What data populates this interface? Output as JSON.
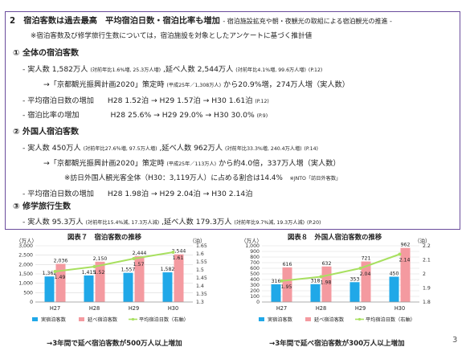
{
  "section": {
    "title": "2　宿泊客数は過去最高　平均宿泊日数・宿泊比率も増加",
    "title_note": "- 宿泊施設拡充や朝・夜観光の取組による宿泊観光の推進 -",
    "source_note": "※宿泊客数及び修学旅行生数については，宿泊施設を対象としたアンケートに基づく推計値"
  },
  "overall": {
    "heading": "① 全体の宿泊客数",
    "line1_main": "- 実人数 1,582万人",
    "line1_note": "(対前年比1.6%増, 25.3万人増)",
    "line1_mid": ",延べ人数 2,544万人",
    "line1_note2": "(対前年比4.1%増, 99.6万人増)",
    "line1_page": "(P.12)",
    "line2_prefix": "→「京都観光振興計画2020」策定時",
    "line2_note": "(平成25年／1,308万人)",
    "line2_from": "から",
    "line2_hl": "20.9%増，274万人増",
    "line2_suffix": "（実人数）",
    "line3_label": "- 平均宿泊日数の増加",
    "line3_vals": "H28 1.52泊 → H29 1.57泊 → H30 1.61泊",
    "line3_page": "(P.12)",
    "line4_label": "- 宿泊比率の増加",
    "line4_vals": "H28 25.6% → H29 29.0% → H30 30.0%",
    "line4_page": "(P.9)"
  },
  "foreign": {
    "heading": "② 外国人宿泊客数",
    "line1_main": "- 実人数 450万人",
    "line1_note": "(対前年比27.6％増, 97.5万人増)",
    "line1_mid": ",延べ人数 962万人",
    "line1_note2": "(対前年比33.3%増, 240.4万人増)",
    "line1_page": "(P.14)",
    "line2_prefix": "→「京都観光振興計画2020」策定時",
    "line2_note": "(平成25年／113万人)",
    "line2_from": "から",
    "line2_hl": "約4.0倍，337万人増",
    "line2_suffix": "（実人数）",
    "line3_main": "※訪日外国人観光客全体（H30：3,119万人）に占める割合は14.4%",
    "line3_note": "※JNTO「訪日外客数」",
    "line4_label": "- 平均宿泊日数の増加",
    "line4_vals": "H28 1.98泊 → H29 2.04泊 → H30 2.14泊"
  },
  "school": {
    "heading": "③ 修学旅行生数",
    "line1_main": "- 実人数 95.3万人",
    "line1_note": "(対前年比15.4%減, 17.3万人減)",
    "line1_mid": ",延べ人数 179.3万人",
    "line1_note2": "(対前年比9.7%減, 19.3万人減)",
    "line1_page": "(P.20)"
  },
  "figure7": {
    "title": "図表７　宿泊客数の推移",
    "unit_left": "（万人）",
    "unit_right": "（泊）",
    "footnote": "→3年間で延べ宿泊客数が500万人以上増加",
    "legend": [
      "実宿泊客数",
      "延べ宿泊客数",
      "平均宿泊日数（右軸）"
    ]
  },
  "figure8": {
    "title": "図表８　外国人宿泊客数の推移",
    "unit_left": "（万人）",
    "unit_right": "（泊）",
    "footnote": "→3年間で延べ宿泊客数が300万人以上増加",
    "legend": [
      "実宿泊客数",
      "延べ宿泊客数",
      "平均宿泊日数（右軸）"
    ]
  },
  "page_number": "3",
  "chart_data": [
    {
      "type": "bar",
      "title": "図表７　宿泊客数の推移",
      "categories": [
        "H27",
        "H28",
        "H29",
        "H30"
      ],
      "series": [
        {
          "name": "実宿泊客数",
          "values": [
            1362,
            1415,
            1557,
            1582
          ],
          "color": "#20a8e8"
        },
        {
          "name": "延べ宿泊客数",
          "values": [
            2036,
            2150,
            2444,
            2544
          ],
          "color": "#f49aa0"
        },
        {
          "name": "平均宿泊日数（右軸）",
          "values": [
            1.49,
            1.52,
            1.57,
            1.61
          ],
          "color": "#a8e060",
          "axis": "right"
        }
      ],
      "ylim": [
        0,
        3000
      ],
      "yticks": [
        "0",
        "500",
        "1,000",
        "1,500",
        "2,000",
        "2,500",
        "3,000"
      ],
      "y2lim": [
        1.3,
        1.65
      ],
      "y2ticks": [
        "1.3",
        "1.35",
        "1.4",
        "1.45",
        "1.5",
        "1.55",
        "1.6",
        "1.65"
      ],
      "bar_labels": [
        [
          "1,362",
          "1,415",
          "1,557",
          "1,582"
        ],
        [
          "2,036",
          "2,150",
          "2,444",
          "2,544"
        ]
      ],
      "line_labels": [
        "1.49",
        "1.52",
        "1.57",
        "1.61"
      ],
      "grid": true,
      "legend": "bottom"
    },
    {
      "type": "bar",
      "title": "図表８　外国人宿泊客数の推移",
      "categories": [
        "H27",
        "H28",
        "H29",
        "H30"
      ],
      "series": [
        {
          "name": "実宿泊客数",
          "values": [
            316,
            318,
            353,
            450
          ],
          "color": "#20a8e8"
        },
        {
          "name": "延べ宿泊客数",
          "values": [
            616,
            632,
            721,
            962
          ],
          "color": "#f49aa0"
        },
        {
          "name": "平均宿泊日数（右軸）",
          "values": [
            1.95,
            1.98,
            2.04,
            2.14
          ],
          "color": "#a8e060",
          "axis": "right"
        }
      ],
      "ylim": [
        0,
        1000
      ],
      "yticks": [
        "0",
        "100",
        "200",
        "300",
        "400",
        "500",
        "600",
        "700",
        "800",
        "900",
        "1,000"
      ],
      "y2lim": [
        1.8,
        2.2
      ],
      "y2ticks": [
        "1.8",
        "1.9",
        "2",
        "2.1",
        "2.2"
      ],
      "bar_labels": [
        [
          "316",
          "318",
          "353",
          "450"
        ],
        [
          "616",
          "632",
          "721",
          "962"
        ]
      ],
      "line_labels": [
        "1.95",
        "1.98",
        "2.04",
        "2.14"
      ],
      "grid": true,
      "legend": "bottom"
    }
  ]
}
